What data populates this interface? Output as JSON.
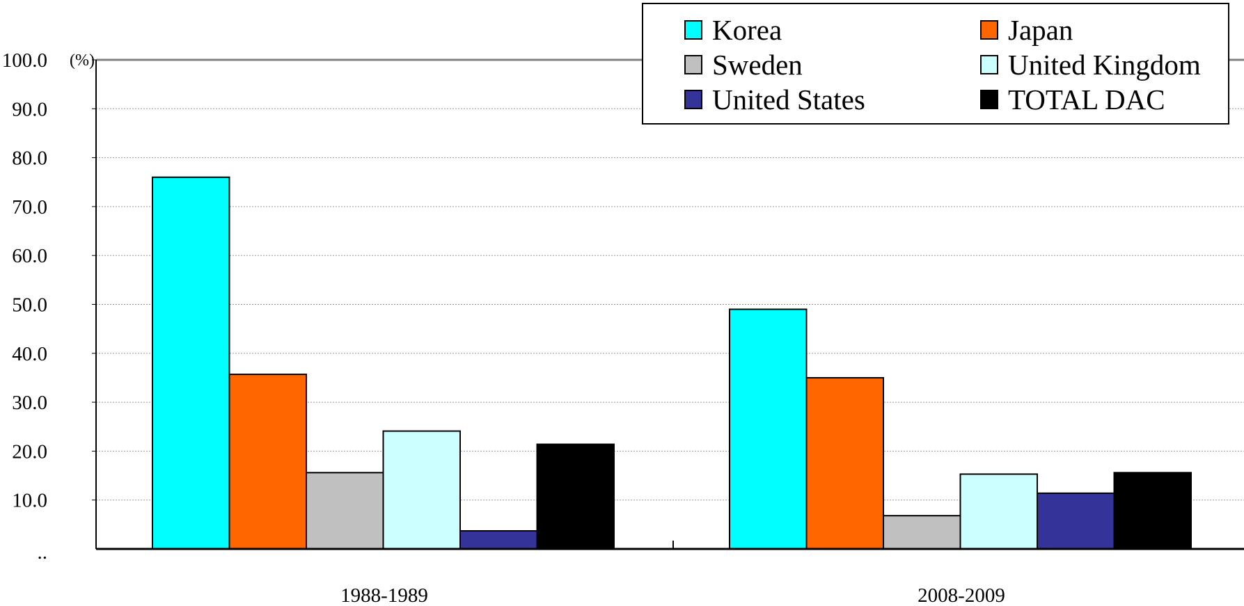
{
  "chart_data": {
    "type": "bar",
    "title": "",
    "xlabel": "",
    "ylabel": "",
    "unit": "(%)",
    "ylim": [
      0,
      100
    ],
    "yticks": [
      "100.0",
      "90.0",
      "80.0",
      "70.0",
      "60.0",
      "50.0",
      "40.0",
      "30.0",
      "20.0",
      "10.0",
      ".."
    ],
    "grid": true,
    "legend_position": "top-right",
    "categories": [
      "1988-1989",
      "2008-2009"
    ],
    "series": [
      {
        "name": "Korea",
        "color": "#00FFFF",
        "values": [
          76.0,
          49.0
        ]
      },
      {
        "name": "Japan",
        "color": "#FF6600",
        "values": [
          35.7,
          35.0
        ]
      },
      {
        "name": "Sweden",
        "color": "#C0C0C0",
        "values": [
          15.6,
          6.8
        ]
      },
      {
        "name": "United Kingdom",
        "color": "#CCFFFF",
        "values": [
          24.1,
          15.3
        ]
      },
      {
        "name": "United States",
        "color": "#333399",
        "values": [
          3.7,
          11.4
        ]
      },
      {
        "name": "TOTAL DAC",
        "color": "#000000",
        "values": [
          21.4,
          15.6
        ]
      }
    ]
  }
}
